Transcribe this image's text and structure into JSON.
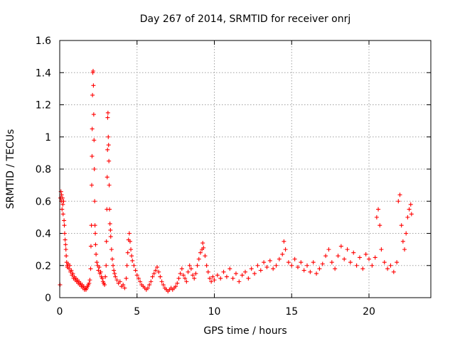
{
  "chart_data": {
    "type": "scatter",
    "title": "Day 267 of 2014, SRMTID for receiver onrj",
    "xlabel": "GPS time / hours",
    "ylabel": "SRMTID / TECUs",
    "xlim": [
      0,
      24
    ],
    "ylim": [
      0,
      1.6
    ],
    "xticks": [
      0,
      5,
      10,
      15,
      20
    ],
    "xtick_labels": [
      "0",
      "5",
      "10",
      "15",
      "20"
    ],
    "yticks": [
      0,
      0.2,
      0.4,
      0.6,
      0.8,
      1,
      1.2,
      1.4,
      1.6
    ],
    "ytick_labels": [
      "0",
      "0.2",
      "0.4",
      "0.6",
      "0.8",
      "1",
      "1.2",
      "1.4",
      "1.6"
    ],
    "grid": true,
    "marker": "+",
    "color": "#ff0000",
    "series": [
      {
        "name": "SRMTID",
        "points": [
          [
            0.02,
            0.08
          ],
          [
            0.05,
            0.62
          ],
          [
            0.08,
            0.66
          ],
          [
            0.1,
            0.6
          ],
          [
            0.12,
            0.64
          ],
          [
            0.15,
            0.55
          ],
          [
            0.18,
            0.62
          ],
          [
            0.2,
            0.58
          ],
          [
            0.22,
            0.52
          ],
          [
            0.25,
            0.6
          ],
          [
            0.28,
            0.48
          ],
          [
            0.3,
            0.45
          ],
          [
            0.32,
            0.4
          ],
          [
            0.35,
            0.36
          ],
          [
            0.38,
            0.33
          ],
          [
            0.4,
            0.3
          ],
          [
            0.42,
            0.26
          ],
          [
            0.45,
            0.22
          ],
          [
            0.48,
            0.2
          ],
          [
            0.5,
            0.19
          ],
          [
            0.55,
            0.21
          ],
          [
            0.6,
            0.18
          ],
          [
            0.65,
            0.2
          ],
          [
            0.7,
            0.16
          ],
          [
            0.75,
            0.17
          ],
          [
            0.8,
            0.14
          ],
          [
            0.85,
            0.15
          ],
          [
            0.9,
            0.12
          ],
          [
            0.95,
            0.13
          ],
          [
            1.0,
            0.11
          ],
          [
            1.05,
            0.12
          ],
          [
            1.1,
            0.1
          ],
          [
            1.15,
            0.11
          ],
          [
            1.2,
            0.09
          ],
          [
            1.25,
            0.1
          ],
          [
            1.3,
            0.08
          ],
          [
            1.35,
            0.09
          ],
          [
            1.4,
            0.07
          ],
          [
            1.45,
            0.08
          ],
          [
            1.5,
            0.06
          ],
          [
            1.55,
            0.07
          ],
          [
            1.6,
            0.05
          ],
          [
            1.65,
            0.06
          ],
          [
            1.7,
            0.05
          ],
          [
            1.75,
            0.06
          ],
          [
            1.8,
            0.07
          ],
          [
            1.85,
            0.08
          ],
          [
            1.9,
            0.09
          ],
          [
            1.95,
            0.11
          ],
          [
            2.0,
            0.18
          ],
          [
            2.02,
            0.32
          ],
          [
            2.05,
            0.45
          ],
          [
            2.07,
            0.7
          ],
          [
            2.09,
            0.88
          ],
          [
            2.1,
            1.05
          ],
          [
            2.12,
            1.26
          ],
          [
            2.14,
            1.4
          ],
          [
            2.16,
            1.41
          ],
          [
            2.18,
            1.32
          ],
          [
            2.2,
            1.14
          ],
          [
            2.22,
            0.98
          ],
          [
            2.24,
            0.8
          ],
          [
            2.26,
            0.6
          ],
          [
            2.28,
            0.45
          ],
          [
            2.3,
            0.4
          ],
          [
            2.32,
            0.33
          ],
          [
            2.35,
            0.27
          ],
          [
            2.4,
            0.22
          ],
          [
            2.45,
            0.2
          ],
          [
            2.5,
            0.17
          ],
          [
            2.55,
            0.19
          ],
          [
            2.6,
            0.15
          ],
          [
            2.65,
            0.16
          ],
          [
            2.7,
            0.13
          ],
          [
            2.75,
            0.12
          ],
          [
            2.8,
            0.1
          ],
          [
            2.85,
            0.09
          ],
          [
            2.9,
            0.08
          ],
          [
            2.95,
            0.13
          ],
          [
            3.0,
            0.2
          ],
          [
            3.02,
            0.35
          ],
          [
            3.05,
            0.55
          ],
          [
            3.07,
            0.75
          ],
          [
            3.09,
            0.92
          ],
          [
            3.1,
            1.12
          ],
          [
            3.12,
            1.15
          ],
          [
            3.14,
            1.0
          ],
          [
            3.16,
            0.95
          ],
          [
            3.18,
            0.85
          ],
          [
            3.2,
            0.7
          ],
          [
            3.22,
            0.55
          ],
          [
            3.25,
            0.46
          ],
          [
            3.28,
            0.42
          ],
          [
            3.3,
            0.38
          ],
          [
            3.35,
            0.3
          ],
          [
            3.4,
            0.24
          ],
          [
            3.45,
            0.2
          ],
          [
            3.5,
            0.17
          ],
          [
            3.55,
            0.15
          ],
          [
            3.6,
            0.13
          ],
          [
            3.7,
            0.11
          ],
          [
            3.8,
            0.09
          ],
          [
            3.9,
            0.1
          ],
          [
            4.0,
            0.07
          ],
          [
            4.1,
            0.08
          ],
          [
            4.2,
            0.06
          ],
          [
            4.3,
            0.12
          ],
          [
            4.35,
            0.2
          ],
          [
            4.4,
            0.28
          ],
          [
            4.45,
            0.36
          ],
          [
            4.5,
            0.4
          ],
          [
            4.55,
            0.35
          ],
          [
            4.6,
            0.3
          ],
          [
            4.65,
            0.26
          ],
          [
            4.7,
            0.23
          ],
          [
            4.8,
            0.2
          ],
          [
            4.9,
            0.17
          ],
          [
            5.0,
            0.14
          ],
          [
            5.1,
            0.12
          ],
          [
            5.2,
            0.1
          ],
          [
            5.3,
            0.08
          ],
          [
            5.4,
            0.07
          ],
          [
            5.5,
            0.06
          ],
          [
            5.6,
            0.05
          ],
          [
            5.7,
            0.06
          ],
          [
            5.8,
            0.08
          ],
          [
            5.9,
            0.1
          ],
          [
            6.0,
            0.13
          ],
          [
            6.1,
            0.15
          ],
          [
            6.2,
            0.17
          ],
          [
            6.3,
            0.19
          ],
          [
            6.4,
            0.16
          ],
          [
            6.5,
            0.13
          ],
          [
            6.6,
            0.1
          ],
          [
            6.7,
            0.08
          ],
          [
            6.8,
            0.06
          ],
          [
            6.9,
            0.05
          ],
          [
            7.0,
            0.04
          ],
          [
            7.1,
            0.05
          ],
          [
            7.2,
            0.06
          ],
          [
            7.3,
            0.05
          ],
          [
            7.4,
            0.06
          ],
          [
            7.5,
            0.07
          ],
          [
            7.6,
            0.09
          ],
          [
            7.7,
            0.12
          ],
          [
            7.8,
            0.15
          ],
          [
            7.9,
            0.18
          ],
          [
            8.0,
            0.14
          ],
          [
            8.1,
            0.12
          ],
          [
            8.2,
            0.1
          ],
          [
            8.3,
            0.16
          ],
          [
            8.4,
            0.2
          ],
          [
            8.5,
            0.18
          ],
          [
            8.6,
            0.14
          ],
          [
            8.7,
            0.12
          ],
          [
            8.8,
            0.15
          ],
          [
            8.9,
            0.2
          ],
          [
            9.0,
            0.24
          ],
          [
            9.1,
            0.28
          ],
          [
            9.2,
            0.3
          ],
          [
            9.25,
            0.34
          ],
          [
            9.3,
            0.31
          ],
          [
            9.4,
            0.26
          ],
          [
            9.5,
            0.2
          ],
          [
            9.6,
            0.16
          ],
          [
            9.7,
            0.12
          ],
          [
            9.8,
            0.1
          ],
          [
            9.9,
            0.13
          ],
          [
            10.0,
            0.11
          ],
          [
            10.2,
            0.14
          ],
          [
            10.4,
            0.12
          ],
          [
            10.6,
            0.16
          ],
          [
            10.8,
            0.13
          ],
          [
            11.0,
            0.18
          ],
          [
            11.2,
            0.12
          ],
          [
            11.4,
            0.15
          ],
          [
            11.6,
            0.1
          ],
          [
            11.8,
            0.14
          ],
          [
            12.0,
            0.16
          ],
          [
            12.2,
            0.12
          ],
          [
            12.4,
            0.18
          ],
          [
            12.6,
            0.15
          ],
          [
            12.8,
            0.2
          ],
          [
            13.0,
            0.17
          ],
          [
            13.2,
            0.22
          ],
          [
            13.4,
            0.19
          ],
          [
            13.6,
            0.23
          ],
          [
            13.8,
            0.18
          ],
          [
            14.0,
            0.2
          ],
          [
            14.2,
            0.24
          ],
          [
            14.4,
            0.27
          ],
          [
            14.5,
            0.35
          ],
          [
            14.6,
            0.3
          ],
          [
            14.8,
            0.22
          ],
          [
            15.0,
            0.2
          ],
          [
            15.2,
            0.24
          ],
          [
            15.4,
            0.19
          ],
          [
            15.6,
            0.22
          ],
          [
            15.8,
            0.17
          ],
          [
            16.0,
            0.2
          ],
          [
            16.2,
            0.16
          ],
          [
            16.4,
            0.22
          ],
          [
            16.6,
            0.15
          ],
          [
            16.8,
            0.18
          ],
          [
            17.0,
            0.21
          ],
          [
            17.2,
            0.26
          ],
          [
            17.4,
            0.3
          ],
          [
            17.6,
            0.22
          ],
          [
            17.8,
            0.18
          ],
          [
            18.0,
            0.26
          ],
          [
            18.2,
            0.32
          ],
          [
            18.4,
            0.24
          ],
          [
            18.6,
            0.3
          ],
          [
            18.8,
            0.22
          ],
          [
            19.0,
            0.28
          ],
          [
            19.2,
            0.2
          ],
          [
            19.4,
            0.25
          ],
          [
            19.6,
            0.18
          ],
          [
            19.8,
            0.27
          ],
          [
            20.0,
            0.24
          ],
          [
            20.2,
            0.2
          ],
          [
            20.4,
            0.25
          ],
          [
            20.5,
            0.5
          ],
          [
            20.6,
            0.55
          ],
          [
            20.7,
            0.45
          ],
          [
            20.8,
            0.3
          ],
          [
            21.0,
            0.22
          ],
          [
            21.2,
            0.18
          ],
          [
            21.4,
            0.2
          ],
          [
            21.6,
            0.16
          ],
          [
            21.8,
            0.22
          ],
          [
            21.9,
            0.6
          ],
          [
            22.0,
            0.64
          ],
          [
            22.1,
            0.45
          ],
          [
            22.2,
            0.35
          ],
          [
            22.3,
            0.3
          ],
          [
            22.4,
            0.4
          ],
          [
            22.5,
            0.5
          ],
          [
            22.6,
            0.55
          ],
          [
            22.7,
            0.58
          ],
          [
            22.75,
            0.52
          ]
        ]
      }
    ]
  }
}
